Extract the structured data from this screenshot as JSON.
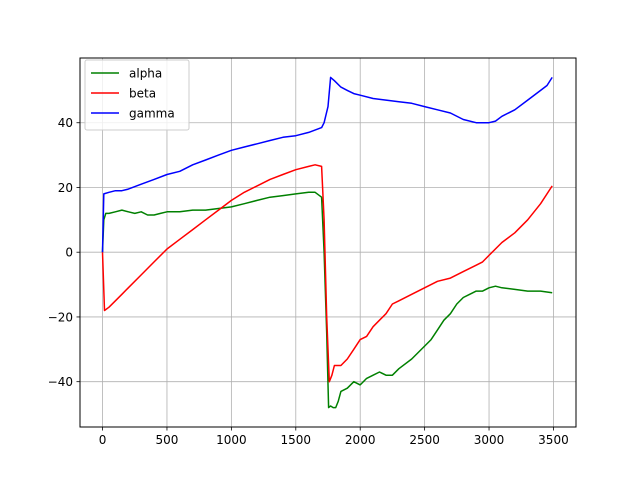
{
  "chart_data": {
    "type": "line",
    "title": "",
    "xlabel": "",
    "ylabel": "",
    "xlim": [
      -175,
      3675
    ],
    "ylim": [
      -54,
      60
    ],
    "xticks": [
      0,
      500,
      1000,
      1500,
      2000,
      2500,
      3000,
      3500
    ],
    "yticks": [
      -40,
      -20,
      0,
      20,
      40
    ],
    "xtick_labels": [
      "0",
      "500",
      "1000",
      "1500",
      "2000",
      "2500",
      "3000",
      "3500"
    ],
    "ytick_labels": [
      "−40",
      "−20",
      "0",
      "20",
      "40"
    ],
    "grid": true,
    "legend_position": "top-left",
    "series": [
      {
        "name": "alpha",
        "color": "#008000",
        "points": [
          [
            0,
            0
          ],
          [
            10,
            10
          ],
          [
            25,
            12
          ],
          [
            50,
            12
          ],
          [
            100,
            12.5
          ],
          [
            150,
            13
          ],
          [
            200,
            12.5
          ],
          [
            250,
            12
          ],
          [
            300,
            12.5
          ],
          [
            350,
            11.5
          ],
          [
            400,
            11.5
          ],
          [
            450,
            12
          ],
          [
            500,
            12.5
          ],
          [
            600,
            12.5
          ],
          [
            700,
            13
          ],
          [
            800,
            13
          ],
          [
            900,
            13.5
          ],
          [
            1000,
            14
          ],
          [
            1100,
            15
          ],
          [
            1200,
            16
          ],
          [
            1300,
            17
          ],
          [
            1400,
            17.5
          ],
          [
            1500,
            18
          ],
          [
            1600,
            18.5
          ],
          [
            1650,
            18.5
          ],
          [
            1700,
            17
          ],
          [
            1720,
            0
          ],
          [
            1740,
            -25
          ],
          [
            1755,
            -48
          ],
          [
            1770,
            -47.5
          ],
          [
            1790,
            -48
          ],
          [
            1810,
            -48
          ],
          [
            1830,
            -46
          ],
          [
            1850,
            -43
          ],
          [
            1900,
            -42
          ],
          [
            1950,
            -40
          ],
          [
            2000,
            -41
          ],
          [
            2050,
            -39
          ],
          [
            2100,
            -38
          ],
          [
            2150,
            -37
          ],
          [
            2200,
            -38
          ],
          [
            2250,
            -38
          ],
          [
            2300,
            -36
          ],
          [
            2400,
            -33
          ],
          [
            2500,
            -29
          ],
          [
            2550,
            -27
          ],
          [
            2600,
            -24
          ],
          [
            2650,
            -21
          ],
          [
            2700,
            -19
          ],
          [
            2750,
            -16
          ],
          [
            2800,
            -14
          ],
          [
            2850,
            -13
          ],
          [
            2900,
            -12
          ],
          [
            2950,
            -12
          ],
          [
            3000,
            -11
          ],
          [
            3050,
            -10.5
          ],
          [
            3100,
            -11
          ],
          [
            3200,
            -11.5
          ],
          [
            3300,
            -12
          ],
          [
            3400,
            -12
          ],
          [
            3490,
            -12.5
          ]
        ]
      },
      {
        "name": "beta",
        "color": "#ff0000",
        "points": [
          [
            0,
            0
          ],
          [
            15,
            -18
          ],
          [
            50,
            -17
          ],
          [
            100,
            -15
          ],
          [
            150,
            -13
          ],
          [
            200,
            -11
          ],
          [
            300,
            -7
          ],
          [
            400,
            -3
          ],
          [
            500,
            1
          ],
          [
            600,
            4
          ],
          [
            700,
            7
          ],
          [
            800,
            10
          ],
          [
            900,
            13
          ],
          [
            1000,
            16
          ],
          [
            1100,
            18.5
          ],
          [
            1200,
            20.5
          ],
          [
            1300,
            22.5
          ],
          [
            1400,
            24
          ],
          [
            1500,
            25.5
          ],
          [
            1600,
            26.5
          ],
          [
            1650,
            27
          ],
          [
            1700,
            26.5
          ],
          [
            1720,
            10
          ],
          [
            1740,
            -20
          ],
          [
            1760,
            -40
          ],
          [
            1780,
            -38
          ],
          [
            1800,
            -35
          ],
          [
            1850,
            -35
          ],
          [
            1900,
            -33
          ],
          [
            1950,
            -30
          ],
          [
            2000,
            -27
          ],
          [
            2050,
            -26
          ],
          [
            2100,
            -23
          ],
          [
            2150,
            -21
          ],
          [
            2200,
            -19
          ],
          [
            2250,
            -16
          ],
          [
            2300,
            -15
          ],
          [
            2400,
            -13
          ],
          [
            2500,
            -11
          ],
          [
            2600,
            -9
          ],
          [
            2700,
            -8
          ],
          [
            2800,
            -6
          ],
          [
            2900,
            -4
          ],
          [
            2950,
            -3
          ],
          [
            3000,
            -1
          ],
          [
            3100,
            3
          ],
          [
            3200,
            6
          ],
          [
            3300,
            10
          ],
          [
            3400,
            15
          ],
          [
            3490,
            20.5
          ]
        ]
      },
      {
        "name": "gamma",
        "color": "#0000ff",
        "points": [
          [
            0,
            0
          ],
          [
            10,
            18
          ],
          [
            50,
            18.5
          ],
          [
            100,
            19
          ],
          [
            150,
            19
          ],
          [
            200,
            19.5
          ],
          [
            300,
            21
          ],
          [
            400,
            22.5
          ],
          [
            500,
            24
          ],
          [
            600,
            25
          ],
          [
            700,
            27
          ],
          [
            800,
            28.5
          ],
          [
            900,
            30
          ],
          [
            1000,
            31.5
          ],
          [
            1100,
            32.5
          ],
          [
            1200,
            33.5
          ],
          [
            1300,
            34.5
          ],
          [
            1400,
            35.5
          ],
          [
            1500,
            36
          ],
          [
            1600,
            37
          ],
          [
            1700,
            38.5
          ],
          [
            1720,
            40
          ],
          [
            1750,
            45
          ],
          [
            1770,
            54
          ],
          [
            1800,
            53
          ],
          [
            1850,
            51
          ],
          [
            1900,
            50
          ],
          [
            1950,
            49
          ],
          [
            2000,
            48.5
          ],
          [
            2100,
            47.5
          ],
          [
            2200,
            47
          ],
          [
            2300,
            46.5
          ],
          [
            2400,
            46
          ],
          [
            2500,
            45
          ],
          [
            2600,
            44
          ],
          [
            2700,
            43
          ],
          [
            2800,
            41
          ],
          [
            2900,
            40
          ],
          [
            3000,
            40
          ],
          [
            3050,
            40.5
          ],
          [
            3100,
            42
          ],
          [
            3200,
            44
          ],
          [
            3300,
            47
          ],
          [
            3400,
            50
          ],
          [
            3450,
            51.5
          ],
          [
            3490,
            54
          ]
        ]
      }
    ]
  }
}
